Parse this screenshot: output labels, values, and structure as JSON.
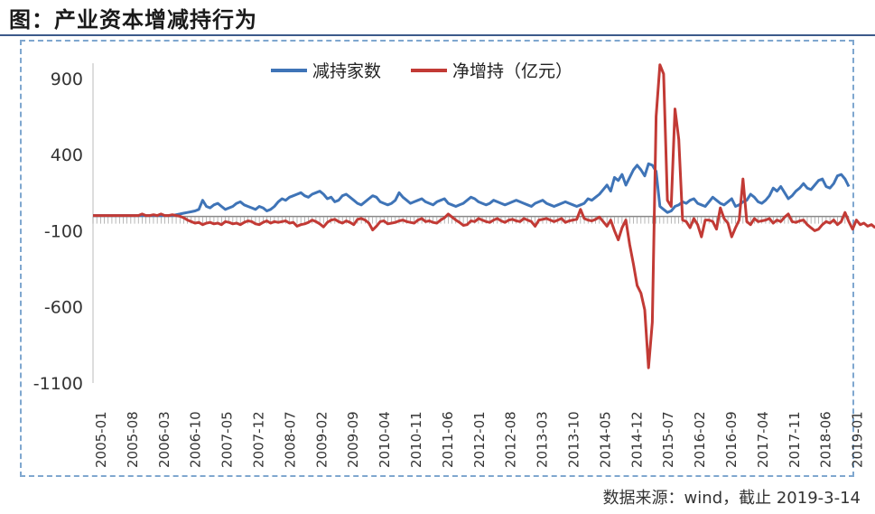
{
  "title": "图：产业资本增减持行为",
  "footer": "数据来源：wind，截止 2019-3-14",
  "colors": {
    "series_count": "#3f74b7",
    "series_net": "#c23a35",
    "frame": "#7fa7cf"
  },
  "chart_data": {
    "type": "line",
    "title": "",
    "xlabel": "",
    "ylabel": "",
    "ylim": [
      -1100,
      1000
    ],
    "yticks": [
      "900",
      "400",
      "-100",
      "-600",
      "-1100"
    ],
    "ytick_values": [
      900,
      400,
      -100,
      -600,
      -1100
    ],
    "xticks": [
      "2005-01",
      "2005-08",
      "2006-03",
      "2006-10",
      "2007-05",
      "2007-12",
      "2008-07",
      "2009-02",
      "2009-09",
      "2010-04",
      "2010-11",
      "2011-06",
      "2012-01",
      "2012-08",
      "2013-03",
      "2013-10",
      "2014-05",
      "2014-12",
      "2015-07",
      "2016-02",
      "2016-09",
      "2017-04",
      "2017-11",
      "2018-06",
      "2019-01"
    ],
    "legend_position": "top-center",
    "series": [
      {
        "name": "减持家数",
        "color": "#3f74b7",
        "values": [
          0,
          0,
          0,
          0,
          0,
          0,
          0,
          0,
          0,
          0,
          0,
          0,
          0,
          0,
          0,
          0,
          0,
          0,
          0,
          0,
          0,
          0,
          5,
          10,
          15,
          20,
          25,
          30,
          40,
          100,
          60,
          50,
          70,
          80,
          60,
          40,
          50,
          60,
          80,
          90,
          70,
          60,
          50,
          40,
          60,
          50,
          30,
          40,
          60,
          90,
          110,
          100,
          120,
          130,
          140,
          150,
          130,
          120,
          140,
          150,
          160,
          140,
          110,
          120,
          90,
          100,
          130,
          140,
          120,
          100,
          80,
          70,
          90,
          110,
          130,
          120,
          90,
          80,
          70,
          80,
          100,
          150,
          120,
          100,
          80,
          90,
          100,
          110,
          90,
          80,
          70,
          90,
          100,
          110,
          80,
          70,
          60,
          70,
          80,
          100,
          120,
          110,
          90,
          80,
          70,
          80,
          100,
          90,
          80,
          70,
          80,
          90,
          100,
          90,
          80,
          70,
          60,
          80,
          90,
          100,
          80,
          70,
          60,
          70,
          80,
          90,
          80,
          70,
          60,
          70,
          80,
          110,
          100,
          120,
          140,
          170,
          200,
          160,
          250,
          230,
          270,
          200,
          250,
          300,
          330,
          300,
          260,
          340,
          330,
          290,
          60,
          40,
          20,
          30,
          60,
          70,
          90,
          80,
          100,
          110,
          80,
          70,
          60,
          90,
          120,
          100,
          80,
          70,
          90,
          110,
          60,
          70,
          90,
          100,
          140,
          120,
          90,
          80,
          100,
          130,
          180,
          160,
          190,
          150,
          110,
          130,
          160,
          180,
          210,
          180,
          170,
          200,
          230,
          240,
          190,
          180,
          210,
          260,
          270,
          240,
          190
        ],
        "values_step_note": ""
      },
      {
        "name": "净增持（亿元）",
        "color": "#c23a35",
        "values": [
          0,
          0,
          0,
          0,
          0,
          0,
          0,
          0,
          0,
          0,
          0,
          0,
          0,
          10,
          0,
          0,
          5,
          0,
          10,
          0,
          0,
          5,
          0,
          -5,
          -15,
          -30,
          -40,
          -50,
          -45,
          -60,
          -50,
          -45,
          -55,
          -50,
          -60,
          -40,
          -45,
          -55,
          -50,
          -60,
          -45,
          -35,
          -40,
          -55,
          -60,
          -45,
          -35,
          -50,
          -40,
          -45,
          -40,
          -35,
          -50,
          -45,
          -70,
          -60,
          -55,
          -45,
          -30,
          -40,
          -55,
          -75,
          -45,
          -30,
          -25,
          -40,
          -50,
          -35,
          -45,
          -60,
          -25,
          -20,
          -30,
          -50,
          -95,
          -70,
          -40,
          -35,
          -55,
          -50,
          -45,
          -35,
          -30,
          -40,
          -45,
          -50,
          -30,
          -20,
          -40,
          -35,
          -45,
          -50,
          -30,
          -15,
          10,
          -10,
          -30,
          -45,
          -65,
          -60,
          -35,
          -40,
          -20,
          -30,
          -40,
          -45,
          -30,
          -20,
          -35,
          -45,
          -30,
          -25,
          -35,
          -40,
          -20,
          -30,
          -40,
          -70,
          -30,
          -25,
          -20,
          -30,
          -40,
          -30,
          -20,
          -45,
          -35,
          -30,
          -25,
          40,
          -20,
          -30,
          -35,
          -25,
          -10,
          -40,
          -70,
          -30,
          -100,
          -160,
          -80,
          -30,
          -190,
          -320,
          -460,
          -510,
          -620,
          -1000,
          -700,
          650,
          990,
          930,
          100,
          60,
          700,
          500,
          -30,
          -40,
          -80,
          -20,
          -60,
          -140,
          -30,
          -30,
          -40,
          -90,
          50,
          -20,
          -50,
          -140,
          -80,
          -30,
          240,
          -40,
          -60,
          -20,
          -40,
          -35,
          -30,
          -20,
          -50,
          -30,
          -40,
          -10,
          10,
          -40,
          -45,
          -35,
          -30,
          -60,
          -80,
          -100,
          -90,
          -60,
          -40,
          -50,
          -30,
          -60,
          -40,
          20,
          -40,
          -90,
          -30,
          -60,
          -50,
          -70,
          -60,
          -80
        ]
      }
    ]
  }
}
